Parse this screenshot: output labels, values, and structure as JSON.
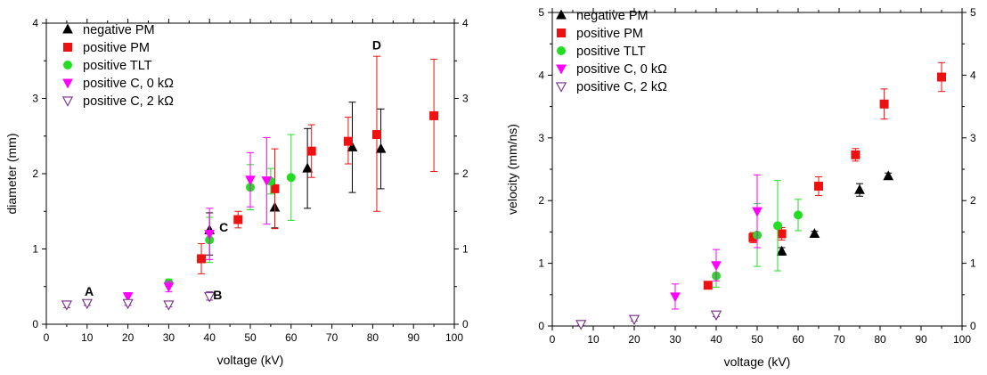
{
  "series_styles": {
    "negative PM": {
      "marker": "triangle-up",
      "color": "#000000",
      "filled": true
    },
    "positive PM": {
      "marker": "square",
      "color": "#ee1111",
      "filled": true
    },
    "positive TLT": {
      "marker": "circle",
      "color": "#22dd22",
      "filled": true
    },
    "positive C, 0 kΩ": {
      "marker": "triangle-down",
      "color": "#ff00ff",
      "filled": true
    },
    "positive C, 2 kΩ": {
      "marker": "triangle-down",
      "color": "#7a2a8a",
      "filled": false
    }
  },
  "chart_data": [
    {
      "type": "scatter",
      "xlabel": "voltage (kV)",
      "ylabel": "diameter (mm)",
      "xlim": [
        0,
        100
      ],
      "ylim": [
        0,
        4
      ],
      "xticks": [
        "0",
        "10",
        "20",
        "30",
        "40",
        "50",
        "60",
        "70",
        "80",
        "90",
        "100"
      ],
      "yticks": [
        "0",
        "1",
        "2",
        "3",
        "4"
      ],
      "right_yticks": [
        "0",
        "1",
        "2",
        "3",
        "4"
      ],
      "grid": false,
      "legend_position": "top-left",
      "legend": [
        "negative PM",
        "positive PM",
        "positive TLT",
        "positive C, 0 kΩ",
        "positive C, 2 kΩ"
      ],
      "annotations": [
        {
          "text": "A",
          "x": 10.5,
          "y": 0.38
        },
        {
          "text": "B",
          "x": 42,
          "y": 0.33
        },
        {
          "text": "C",
          "x": 43.5,
          "y": 1.23
        },
        {
          "text": "D",
          "x": 81,
          "y": 3.65
        }
      ],
      "series": [
        {
          "name": "negative PM",
          "points": [
            {
              "x": 40,
              "y": 1.25,
              "lo": 0.92,
              "hi": 1.48
            },
            {
              "x": 56,
              "y": 1.55,
              "lo": 1.28,
              "hi": 1.78
            },
            {
              "x": 64,
              "y": 2.07,
              "lo": 1.54,
              "hi": 2.6
            },
            {
              "x": 75,
              "y": 2.35,
              "lo": 1.75,
              "hi": 2.95
            },
            {
              "x": 82,
              "y": 2.33,
              "lo": 1.8,
              "hi": 2.86
            }
          ]
        },
        {
          "name": "positive PM",
          "points": [
            {
              "x": 38,
              "y": 0.87,
              "lo": 0.67,
              "hi": 1.07
            },
            {
              "x": 47,
              "y": 1.39,
              "lo": 1.28,
              "hi": 1.5
            },
            {
              "x": 56,
              "y": 1.8,
              "lo": 1.27,
              "hi": 2.33
            },
            {
              "x": 65,
              "y": 2.3,
              "lo": 1.95,
              "hi": 2.65
            },
            {
              "x": 74,
              "y": 2.43,
              "lo": 2.13,
              "hi": 2.75
            },
            {
              "x": 81,
              "y": 2.52,
              "lo": 1.5,
              "hi": 3.56
            },
            {
              "x": 95,
              "y": 2.77,
              "lo": 2.03,
              "hi": 3.52
            }
          ]
        },
        {
          "name": "positive TLT",
          "points": [
            {
              "x": 30,
              "y": 0.55,
              "lo": 0.5,
              "hi": 0.6
            },
            {
              "x": 40,
              "y": 1.12,
              "lo": 0.82,
              "hi": 1.42
            },
            {
              "x": 50,
              "y": 1.82,
              "lo": 1.52,
              "hi": 2.12
            },
            {
              "x": 55,
              "y": 1.9,
              "lo": 1.73,
              "hi": 2.07
            },
            {
              "x": 60,
              "y": 1.95,
              "lo": 1.38,
              "hi": 2.52
            }
          ]
        },
        {
          "name": "positive C, 0 kΩ",
          "points": [
            {
              "x": 20,
              "y": 0.37,
              "lo": 0.32,
              "hi": 0.42
            },
            {
              "x": 30,
              "y": 0.5,
              "lo": 0.43,
              "hi": 0.57
            },
            {
              "x": 40,
              "y": 1.2,
              "lo": 0.86,
              "hi": 1.54
            },
            {
              "x": 50,
              "y": 1.92,
              "lo": 1.56,
              "hi": 2.28
            },
            {
              "x": 54,
              "y": 1.91,
              "lo": 1.33,
              "hi": 2.48
            }
          ]
        },
        {
          "name": "positive C, 2 kΩ",
          "points": [
            {
              "x": 5,
              "y": 0.26,
              "lo": 0.22,
              "hi": 0.3
            },
            {
              "x": 10,
              "y": 0.28,
              "lo": 0.25,
              "hi": 0.31
            },
            {
              "x": 20,
              "y": 0.28,
              "lo": 0.25,
              "hi": 0.31
            },
            {
              "x": 30,
              "y": 0.26,
              "lo": 0.23,
              "hi": 0.29
            },
            {
              "x": 40,
              "y": 0.37,
              "lo": 0.32,
              "hi": 0.43
            }
          ]
        }
      ]
    },
    {
      "type": "scatter",
      "xlabel": "voltage (kV)",
      "ylabel": "velocity (mm/ns)",
      "xlim": [
        0,
        100
      ],
      "ylim": [
        0,
        5
      ],
      "xticks": [
        "0",
        "10",
        "20",
        "30",
        "40",
        "50",
        "60",
        "70",
        "80",
        "90",
        "100"
      ],
      "yticks": [
        "0",
        "1",
        "2",
        "3",
        "4",
        "5"
      ],
      "right_yticks": [
        "0",
        "1",
        "2",
        "3",
        "4",
        "5"
      ],
      "grid": false,
      "legend_position": "top-left",
      "legend": [
        "negative PM",
        "positive PM",
        "positive TLT",
        "positive C, 0 kΩ",
        "positive C, 2 kΩ"
      ],
      "annotations": [],
      "series": [
        {
          "name": "negative PM",
          "points": [
            {
              "x": 56,
              "y": 1.19,
              "lo": 1.13,
              "hi": 1.25
            },
            {
              "x": 64,
              "y": 1.47,
              "lo": 1.43,
              "hi": 1.51
            },
            {
              "x": 75,
              "y": 2.17,
              "lo": 2.07,
              "hi": 2.27
            },
            {
              "x": 82,
              "y": 2.39,
              "lo": 2.34,
              "hi": 2.44
            }
          ]
        },
        {
          "name": "positive PM",
          "points": [
            {
              "x": 38,
              "y": 0.65,
              "lo": 0.63,
              "hi": 0.67
            },
            {
              "x": 49,
              "y": 1.41,
              "lo": 1.33,
              "hi": 1.49
            },
            {
              "x": 56,
              "y": 1.47,
              "lo": 1.37,
              "hi": 1.57
            },
            {
              "x": 65,
              "y": 2.23,
              "lo": 2.08,
              "hi": 2.38
            },
            {
              "x": 74,
              "y": 2.73,
              "lo": 2.63,
              "hi": 2.83
            },
            {
              "x": 81,
              "y": 3.54,
              "lo": 3.3,
              "hi": 3.78
            },
            {
              "x": 95,
              "y": 3.97,
              "lo": 3.74,
              "hi": 4.2
            }
          ]
        },
        {
          "name": "positive TLT",
          "points": [
            {
              "x": 40,
              "y": 0.8,
              "lo": 0.62,
              "hi": 0.98
            },
            {
              "x": 50,
              "y": 1.45,
              "lo": 0.95,
              "hi": 1.95
            },
            {
              "x": 55,
              "y": 1.6,
              "lo": 0.88,
              "hi": 2.32
            },
            {
              "x": 60,
              "y": 1.77,
              "lo": 1.52,
              "hi": 2.02
            }
          ]
        },
        {
          "name": "positive C, 0 kΩ",
          "points": [
            {
              "x": 30,
              "y": 0.47,
              "lo": 0.27,
              "hi": 0.67
            },
            {
              "x": 40,
              "y": 0.97,
              "lo": 0.72,
              "hi": 1.22
            },
            {
              "x": 50,
              "y": 1.83,
              "lo": 1.25,
              "hi": 2.41
            }
          ]
        },
        {
          "name": "positive C, 2 kΩ",
          "points": [
            {
              "x": 7,
              "y": 0.03,
              "lo": 0.01,
              "hi": 0.05
            },
            {
              "x": 20,
              "y": 0.11,
              "lo": 0.08,
              "hi": 0.14
            },
            {
              "x": 40,
              "y": 0.18,
              "lo": 0.15,
              "hi": 0.21
            }
          ]
        }
      ]
    }
  ]
}
